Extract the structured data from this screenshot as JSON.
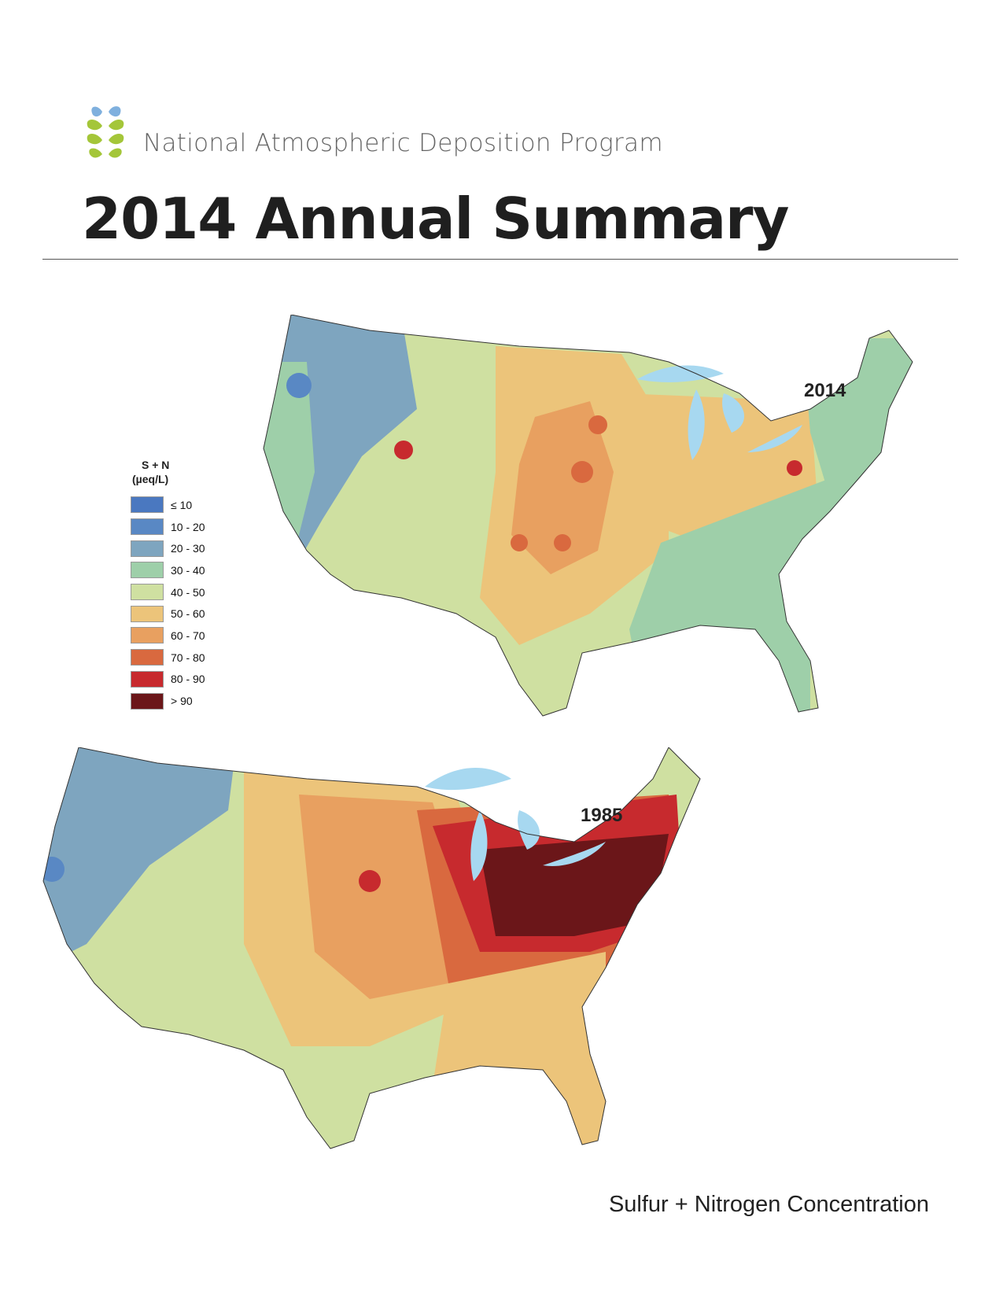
{
  "header": {
    "org_name": "National Atmospheric Deposition Program",
    "title": "2014 Annual Summary"
  },
  "legend": {
    "title": "S + N",
    "unit": "(µeq/L)",
    "bins": [
      {
        "label": "≤ 10",
        "color": "#4a78c0"
      },
      {
        "label": "10 - 20",
        "color": "#5988c4"
      },
      {
        "label": "20 - 30",
        "color": "#7ea5bf"
      },
      {
        "label": "30 - 40",
        "color": "#9ecfa9"
      },
      {
        "label": "40 - 50",
        "color": "#cfe0a1"
      },
      {
        "label": "50 - 60",
        "color": "#ecc47a"
      },
      {
        "label": "60 - 70",
        "color": "#e8a060"
      },
      {
        "label": "70 - 80",
        "color": "#d9693f"
      },
      {
        "label": "80 - 90",
        "color": "#c72a2e"
      },
      {
        "label": "> 90",
        "color": "#6b1619"
      }
    ]
  },
  "maps": [
    {
      "year": "2014",
      "lake_color": "#a7d8f0"
    },
    {
      "year": "1985",
      "lake_color": "#a7d8f0"
    }
  ],
  "footer": {
    "caption": "Sulfur + Nitrogen Concentration"
  }
}
